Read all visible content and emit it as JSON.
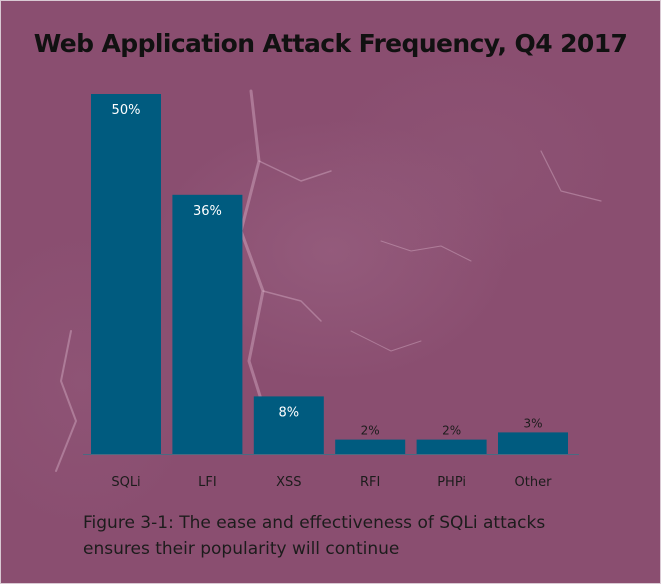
{
  "title": "Web Application Attack Frequency, Q4 2017",
  "caption": "Figure 3-1: The ease and effectiveness of SQLi attacks ensures their popularity will continue",
  "colors": {
    "background": "#8a4e70",
    "bar": "#005b7f",
    "label_inside": "#ffffff",
    "label_outside": "#1c1c1c",
    "axis": "#4a6a82"
  },
  "chart_data": {
    "type": "bar",
    "categories": [
      "SQLi",
      "LFI",
      "XSS",
      "RFI",
      "PHPi",
      "Other"
    ],
    "values": [
      50,
      36,
      8,
      2,
      2,
      3
    ],
    "value_labels": [
      "50%",
      "36%",
      "8%",
      "2%",
      "2%",
      "3%"
    ],
    "ylim": [
      0,
      50
    ],
    "grid": false,
    "legend": "none"
  }
}
